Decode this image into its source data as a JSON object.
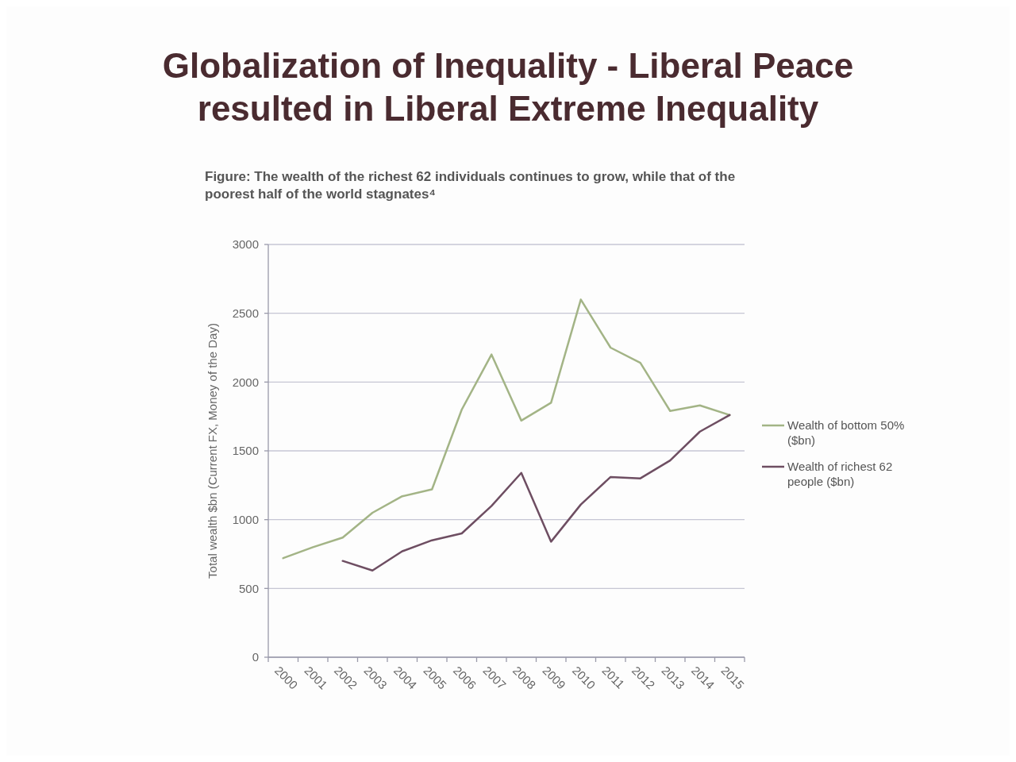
{
  "chart_data": {
    "type": "line",
    "title": "Globalization of Inequality - Liberal Peace resulted in Liberal Extreme Inequality",
    "subtitle": "Figure: The wealth of the richest 62 individuals continues to grow, while that of the poorest half of the world stagnates⁴",
    "ylabel": "Total wealth $bn (Current FX, Money of the Day)",
    "categories": [
      "2000",
      "2001",
      "2002",
      "2003",
      "2004",
      "2005",
      "2006",
      "2007",
      "2008",
      "2009",
      "2010",
      "2011",
      "2012",
      "2013",
      "2014",
      "2015"
    ],
    "series": [
      {
        "name": "Wealth of bottom 50% ($bn)",
        "color": "#a3b486",
        "values": [
          720,
          800,
          870,
          1050,
          1170,
          1220,
          1800,
          2200,
          1720,
          1850,
          2600,
          2250,
          2140,
          1790,
          1830,
          1760
        ]
      },
      {
        "name": "Wealth of richest 62 people ($bn)",
        "color": "#6e4e62",
        "values": [
          null,
          null,
          700,
          630,
          770,
          850,
          900,
          1100,
          1340,
          840,
          1110,
          1310,
          1300,
          1430,
          1640,
          1760
        ]
      }
    ],
    "ylim": [
      0,
      3000
    ],
    "yticks": [
      0,
      500,
      1000,
      1500,
      2000,
      2500,
      3000
    ],
    "grid": "y",
    "legend": "right"
  }
}
